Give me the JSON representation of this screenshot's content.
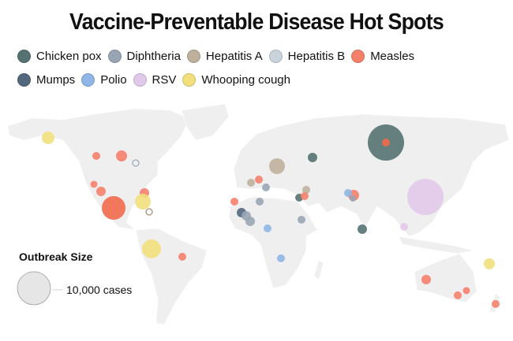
{
  "title": "Vaccine-Preventable Disease Hot Spots",
  "legend": [
    {
      "key": "chickenpox",
      "label": "Chicken pox",
      "color": "#557272"
    },
    {
      "key": "diphtheria",
      "label": "Diphtheria",
      "color": "#98a6b4"
    },
    {
      "key": "hepa",
      "label": "Hepatitis A",
      "color": "#bfb09c"
    },
    {
      "key": "hepb",
      "label": "Hepatitis B",
      "color": "#c9d3db"
    },
    {
      "key": "measles",
      "label": "Measles",
      "color": "#f5806a"
    },
    {
      "key": "mumps",
      "label": "Mumps",
      "color": "#53677f"
    },
    {
      "key": "polio",
      "label": "Polio",
      "color": "#8fb6e6"
    },
    {
      "key": "rsv",
      "label": "RSV",
      "color": "#e1c9ea"
    },
    {
      "key": "whooping",
      "label": "Whooping cough",
      "color": "#f1df7c"
    }
  ],
  "size_legend": {
    "title": "Outbreak Size",
    "label": "10,000 cases"
  },
  "map_color": "#efefef"
}
